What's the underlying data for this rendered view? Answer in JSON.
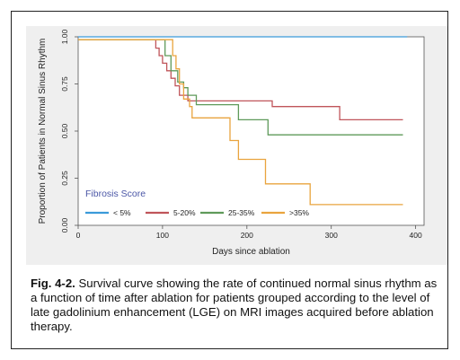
{
  "chart_data": {
    "type": "line",
    "step": true,
    "xlabel": "Days since ablation",
    "ylabel": "Proportion of Patients in Normal Sinus Rhythm",
    "xlim": [
      0,
      410
    ],
    "ylim": [
      0,
      1.0
    ],
    "xticks": [
      "0",
      "100",
      "200",
      "300",
      "400"
    ],
    "yticks": [
      "0.00",
      "0.25",
      "0.50",
      "0.75",
      "1.00"
    ],
    "grid": false,
    "legend": {
      "title": "Fibrosis Score",
      "placement": "bottom-left",
      "orientation": "horizontal"
    },
    "series": [
      {
        "name": "< 5%",
        "color": "#3a9ad9",
        "points": [
          [
            0,
            1.0
          ],
          [
            390,
            1.0
          ]
        ]
      },
      {
        "name": "5-20%",
        "color": "#c0555a",
        "points": [
          [
            0,
            0.985
          ],
          [
            90,
            0.985
          ],
          [
            92,
            0.94
          ],
          [
            96,
            0.9
          ],
          [
            100,
            0.86
          ],
          [
            105,
            0.82
          ],
          [
            110,
            0.78
          ],
          [
            115,
            0.74
          ],
          [
            120,
            0.69
          ],
          [
            130,
            0.66
          ],
          [
            230,
            0.66
          ],
          [
            230,
            0.63
          ],
          [
            310,
            0.63
          ],
          [
            310,
            0.56
          ],
          [
            385,
            0.56
          ]
        ]
      },
      {
        "name": "25-35%",
        "color": "#5f9a5a",
        "points": [
          [
            0,
            0.985
          ],
          [
            100,
            0.985
          ],
          [
            103,
            0.9
          ],
          [
            110,
            0.82
          ],
          [
            118,
            0.76
          ],
          [
            125,
            0.73
          ],
          [
            130,
            0.69
          ],
          [
            140,
            0.64
          ],
          [
            190,
            0.64
          ],
          [
            190,
            0.56
          ],
          [
            225,
            0.56
          ],
          [
            225,
            0.48
          ],
          [
            385,
            0.48
          ]
        ]
      },
      {
        "name": ">35%",
        "color": "#e9a43e",
        "points": [
          [
            0,
            0.985
          ],
          [
            108,
            0.985
          ],
          [
            112,
            0.9
          ],
          [
            116,
            0.83
          ],
          [
            120,
            0.75
          ],
          [
            125,
            0.67
          ],
          [
            132,
            0.63
          ],
          [
            135,
            0.57
          ],
          [
            180,
            0.57
          ],
          [
            180,
            0.45
          ],
          [
            190,
            0.45
          ],
          [
            190,
            0.35
          ],
          [
            222,
            0.35
          ],
          [
            222,
            0.22
          ],
          [
            275,
            0.22
          ],
          [
            275,
            0.11
          ],
          [
            385,
            0.11
          ]
        ]
      }
    ]
  },
  "caption": {
    "label": "Fig. 4-2.",
    "text": " Survival curve showing the rate of continued normal sinus rhythm as a function of time after ablation for patients grouped according to the level of late gadolinium enhancement (LGE) on MRI images acquired before ablation therapy."
  }
}
